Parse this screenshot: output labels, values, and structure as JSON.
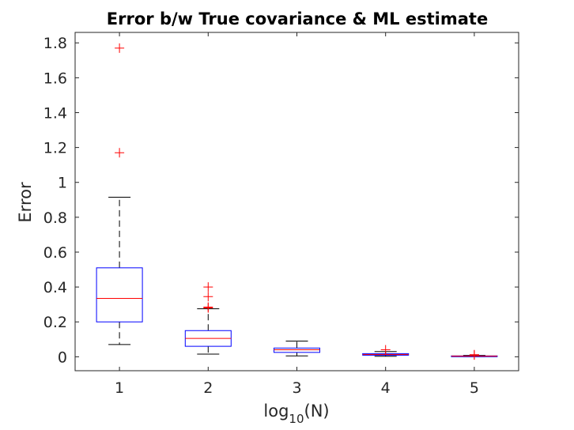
{
  "chart_data": {
    "type": "boxplot",
    "title": "Error b/w True covariance & ML estimate",
    "xlabel": {
      "base": "log",
      "subscript": "10",
      "suffix": "(N)"
    },
    "ylabel": "Error",
    "categories": [
      "1",
      "2",
      "3",
      "4",
      "5"
    ],
    "ylim": [
      -0.08,
      1.86
    ],
    "yticks": [
      "0",
      "0.2",
      "0.4",
      "0.6",
      "0.8",
      "1",
      "1.2",
      "1.4",
      "1.6",
      "1.8"
    ],
    "grid": false,
    "box_color": "#0000ff",
    "median_color": "#ff0000",
    "whisker_color": "#000000",
    "outlier_color": "#ff0000",
    "boxes": [
      {
        "category": "1",
        "whisker_low": 0.07,
        "q1": 0.2,
        "median": 0.335,
        "q3": 0.51,
        "whisker_high": 0.915,
        "outliers": [
          1.17,
          1.77
        ]
      },
      {
        "category": "2",
        "whisker_low": 0.015,
        "q1": 0.06,
        "median": 0.105,
        "q3": 0.15,
        "whisker_high": 0.275,
        "outliers": [
          0.28,
          0.285,
          0.345,
          0.4
        ]
      },
      {
        "category": "3",
        "whisker_low": 0.005,
        "q1": 0.025,
        "median": 0.04,
        "q3": 0.05,
        "whisker_high": 0.09,
        "outliers": []
      },
      {
        "category": "4",
        "whisker_low": 0.003,
        "q1": 0.009,
        "median": 0.013,
        "q3": 0.018,
        "whisker_high": 0.03,
        "outliers": [
          0.04
        ]
      },
      {
        "category": "5",
        "whisker_low": 0.001,
        "q1": 0.003,
        "median": 0.004,
        "q3": 0.005,
        "whisker_high": 0.008,
        "outliers": [
          0.01,
          0.012
        ]
      }
    ]
  }
}
